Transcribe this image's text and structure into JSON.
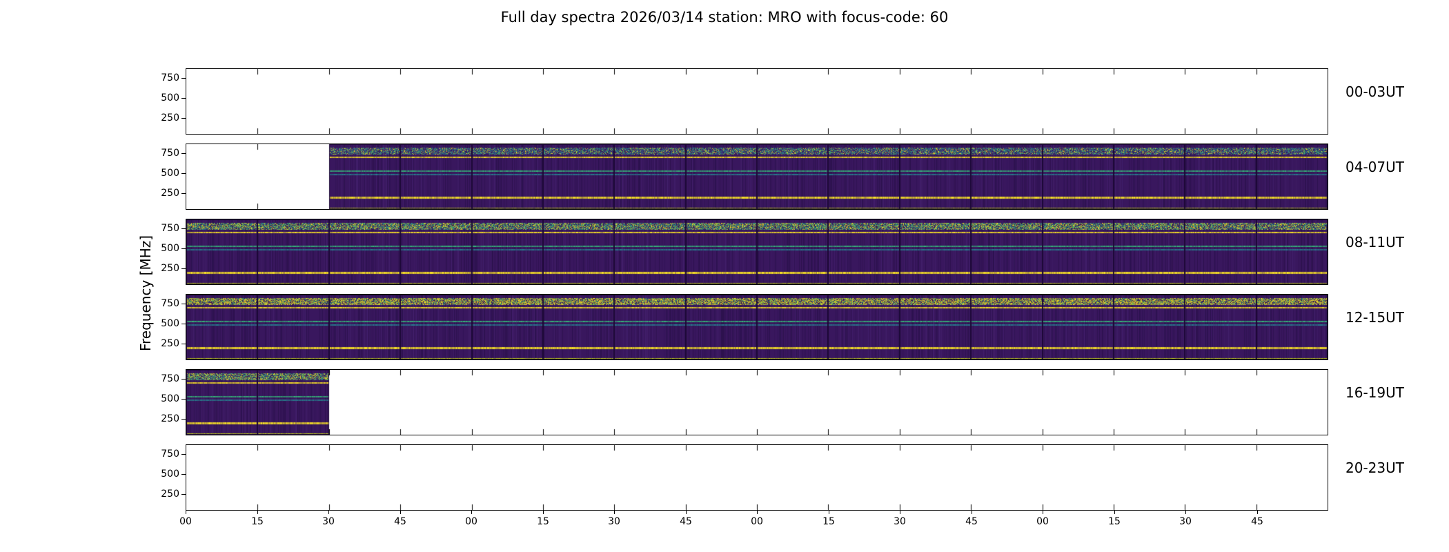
{
  "title": "Full day spectra 2026/03/14 station: MRO with focus-code: 60",
  "ylabel": "Frequency [MHz]",
  "chart_data": {
    "type": "heatmap",
    "subtype": "radio-spectrogram-full-day-overview",
    "date": "2026/03/14",
    "station": "MRO",
    "focus_code": "60",
    "hours_per_row": 4,
    "minutes_per_segment": 15,
    "segments_per_row": 16,
    "freq_range_mhz": [
      870,
      45
    ],
    "y_ticks_mhz": [
      750,
      500,
      250
    ],
    "x_ticks_minutes": [
      "00",
      "15",
      "30",
      "45",
      "00",
      "15",
      "30",
      "45",
      "00",
      "15",
      "30",
      "45",
      "00",
      "15",
      "30",
      "45"
    ],
    "panels": [
      {
        "label": "00-03UT",
        "has_data": false,
        "segments": null,
        "coverage": "no data"
      },
      {
        "label": "04-07UT",
        "has_data": true,
        "segments": [
          2,
          15
        ],
        "palette_bias": "teal",
        "coverage": "data from 04:30 to end of row"
      },
      {
        "label": "08-11UT",
        "has_data": true,
        "segments": [
          0,
          15
        ],
        "palette_bias": "green",
        "coverage": "data for full row"
      },
      {
        "label": "12-15UT",
        "has_data": true,
        "segments": [
          0,
          15
        ],
        "palette_bias": "yellow",
        "coverage": "data for full row"
      },
      {
        "label": "16-19UT",
        "has_data": true,
        "segments": [
          0,
          1
        ],
        "palette_bias": "green",
        "coverage": "data from 16:00 to 16:30 only"
      },
      {
        "label": "20-23UT",
        "has_data": false,
        "segments": null,
        "coverage": "no data"
      }
    ],
    "features": {
      "background_value": "dark purple (low intensity, viridis colormap)",
      "bands": [
        {
          "freq_mhz": [
            745,
            825
          ],
          "type": "broadband-mottled",
          "desc": "bright mottled interference band near top of each spectrogram"
        },
        {
          "freq_mhz": 710,
          "type": "line",
          "hex": "#fde725",
          "thick": 2,
          "desc": "narrow yellow line below top band"
        },
        {
          "freq_mhz": 540,
          "type": "line",
          "hex": "#35b779",
          "thick": 2,
          "desc": "narrow green-cyan line mid band"
        },
        {
          "freq_mhz": 495,
          "type": "line",
          "hex": "#27808e",
          "thick": 2,
          "desc": "narrow teal line mid band"
        },
        {
          "freq_mhz": 200,
          "type": "line",
          "hex": "#fde725",
          "thick": 3,
          "desc": "bright yellow line near bottom"
        },
        {
          "freq_mhz": 65,
          "type": "line",
          "hex": "#d2e21b",
          "thick": 2,
          "desc": "yellow-green line at bottom edge"
        }
      ]
    }
  },
  "colors": {
    "background": "#ffffff",
    "axes": "#000000",
    "base": "#39175e",
    "segment_border": "#1c0836",
    "top_band_palettes": {
      "teal": [
        "#21918c",
        "#2a788e",
        "#35b779",
        "#443983",
        "#90d743",
        "#fde725",
        "#31688e"
      ],
      "green": [
        "#35b779",
        "#5ec962",
        "#90d743",
        "#fde725",
        "#21918c",
        "#2a788e",
        "#fde725"
      ],
      "yellow": [
        "#fde725",
        "#d2e21b",
        "#a5db36",
        "#fde725",
        "#5ec962",
        "#fde725",
        "#21918c"
      ]
    }
  }
}
